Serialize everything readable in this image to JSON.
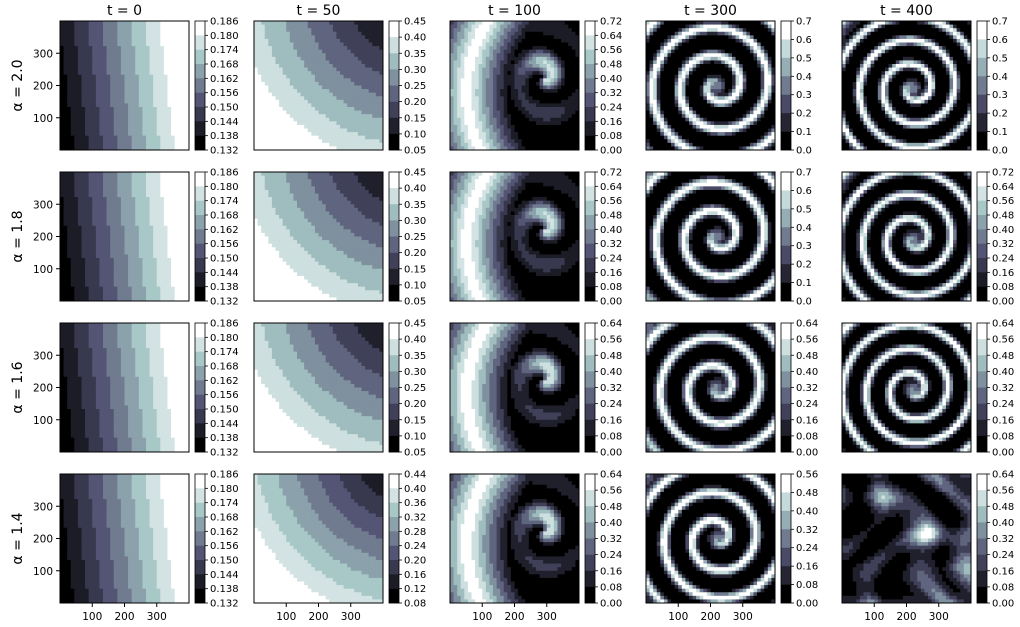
{
  "chart_data": {
    "type": "contour_grid",
    "col_titles": [
      "t = 0",
      "t = 50",
      "t = 100",
      "t = 300",
      "t = 400"
    ],
    "row_labels": [
      "α = 2.0",
      "α = 1.8",
      "α = 1.6",
      "α = 1.4"
    ],
    "axis": {
      "range": [
        0,
        400
      ],
      "x_ticks": [
        100,
        200,
        300
      ],
      "y_ticks": [
        100,
        200,
        300
      ]
    },
    "colormap": "bone",
    "panels": [
      [
        {
          "t": 0,
          "pattern": "gradient",
          "ticks": [
            "0.186",
            "0.180",
            "0.174",
            "0.168",
            "0.162",
            "0.156",
            "0.150",
            "0.144",
            "0.138",
            "0.132"
          ]
        },
        {
          "t": 50,
          "pattern": "wave",
          "ticks": [
            "0.45",
            "0.40",
            "0.35",
            "0.30",
            "0.25",
            "0.20",
            "0.15",
            "0.10",
            "0.05"
          ]
        },
        {
          "t": 100,
          "pattern": "front",
          "ticks": [
            "0.72",
            "0.64",
            "0.56",
            "0.48",
            "0.40",
            "0.32",
            "0.24",
            "0.16",
            "0.08",
            "0.00"
          ]
        },
        {
          "t": 300,
          "pattern": "spiral",
          "ticks": [
            "0.7",
            "0.6",
            "0.5",
            "0.4",
            "0.3",
            "0.2",
            "0.1",
            "0.0"
          ]
        },
        {
          "t": 400,
          "pattern": "spiral-mature",
          "ticks": [
            "0.7",
            "0.6",
            "0.5",
            "0.4",
            "0.3",
            "0.2",
            "0.1",
            "0.0"
          ]
        }
      ],
      [
        {
          "t": 0,
          "pattern": "gradient",
          "ticks": [
            "0.186",
            "0.180",
            "0.174",
            "0.168",
            "0.162",
            "0.156",
            "0.150",
            "0.144",
            "0.138",
            "0.132"
          ]
        },
        {
          "t": 50,
          "pattern": "wave",
          "ticks": [
            "0.45",
            "0.40",
            "0.35",
            "0.30",
            "0.25",
            "0.20",
            "0.15",
            "0.10",
            "0.05"
          ]
        },
        {
          "t": 100,
          "pattern": "front",
          "ticks": [
            "0.72",
            "0.64",
            "0.56",
            "0.48",
            "0.40",
            "0.32",
            "0.24",
            "0.16",
            "0.08",
            "0.00"
          ]
        },
        {
          "t": 300,
          "pattern": "spiral",
          "ticks": [
            "0.7",
            "0.6",
            "0.5",
            "0.4",
            "0.3",
            "0.2",
            "0.1",
            "0.0"
          ]
        },
        {
          "t": 400,
          "pattern": "spiral-mature",
          "ticks": [
            "0.72",
            "0.64",
            "0.56",
            "0.48",
            "0.40",
            "0.32",
            "0.24",
            "0.16",
            "0.08",
            "0.00"
          ]
        }
      ],
      [
        {
          "t": 0,
          "pattern": "gradient",
          "ticks": [
            "0.186",
            "0.180",
            "0.174",
            "0.168",
            "0.162",
            "0.156",
            "0.150",
            "0.144",
            "0.138",
            "0.132"
          ]
        },
        {
          "t": 50,
          "pattern": "wave",
          "ticks": [
            "0.45",
            "0.40",
            "0.35",
            "0.30",
            "0.25",
            "0.20",
            "0.15",
            "0.10",
            "0.05"
          ]
        },
        {
          "t": 100,
          "pattern": "front",
          "ticks": [
            "0.64",
            "0.56",
            "0.48",
            "0.40",
            "0.32",
            "0.24",
            "0.16",
            "0.08",
            "0.00"
          ]
        },
        {
          "t": 300,
          "pattern": "spiral",
          "ticks": [
            "0.64",
            "0.56",
            "0.48",
            "0.40",
            "0.32",
            "0.24",
            "0.16",
            "0.08",
            "0.00"
          ]
        },
        {
          "t": 400,
          "pattern": "spiral-mature",
          "ticks": [
            "0.64",
            "0.56",
            "0.48",
            "0.40",
            "0.32",
            "0.24",
            "0.16",
            "0.08",
            "0.00"
          ]
        }
      ],
      [
        {
          "t": 0,
          "pattern": "gradient",
          "ticks": [
            "0.186",
            "0.180",
            "0.174",
            "0.168",
            "0.162",
            "0.156",
            "0.150",
            "0.144",
            "0.138",
            "0.132"
          ]
        },
        {
          "t": 50,
          "pattern": "wave",
          "ticks": [
            "0.44",
            "0.40",
            "0.36",
            "0.32",
            "0.28",
            "0.24",
            "0.20",
            "0.16",
            "0.12",
            "0.08"
          ]
        },
        {
          "t": 100,
          "pattern": "front",
          "ticks": [
            "0.64",
            "0.56",
            "0.48",
            "0.40",
            "0.32",
            "0.24",
            "0.16",
            "0.08",
            "0.00"
          ]
        },
        {
          "t": 300,
          "pattern": "spiral",
          "ticks": [
            "0.56",
            "0.48",
            "0.40",
            "0.32",
            "0.24",
            "0.16",
            "0.08",
            "0.00"
          ]
        },
        {
          "t": 400,
          "pattern": "chaotic",
          "ticks": [
            "0.64",
            "0.56",
            "0.48",
            "0.40",
            "0.32",
            "0.24",
            "0.16",
            "0.08",
            "0.00"
          ]
        }
      ]
    ]
  }
}
